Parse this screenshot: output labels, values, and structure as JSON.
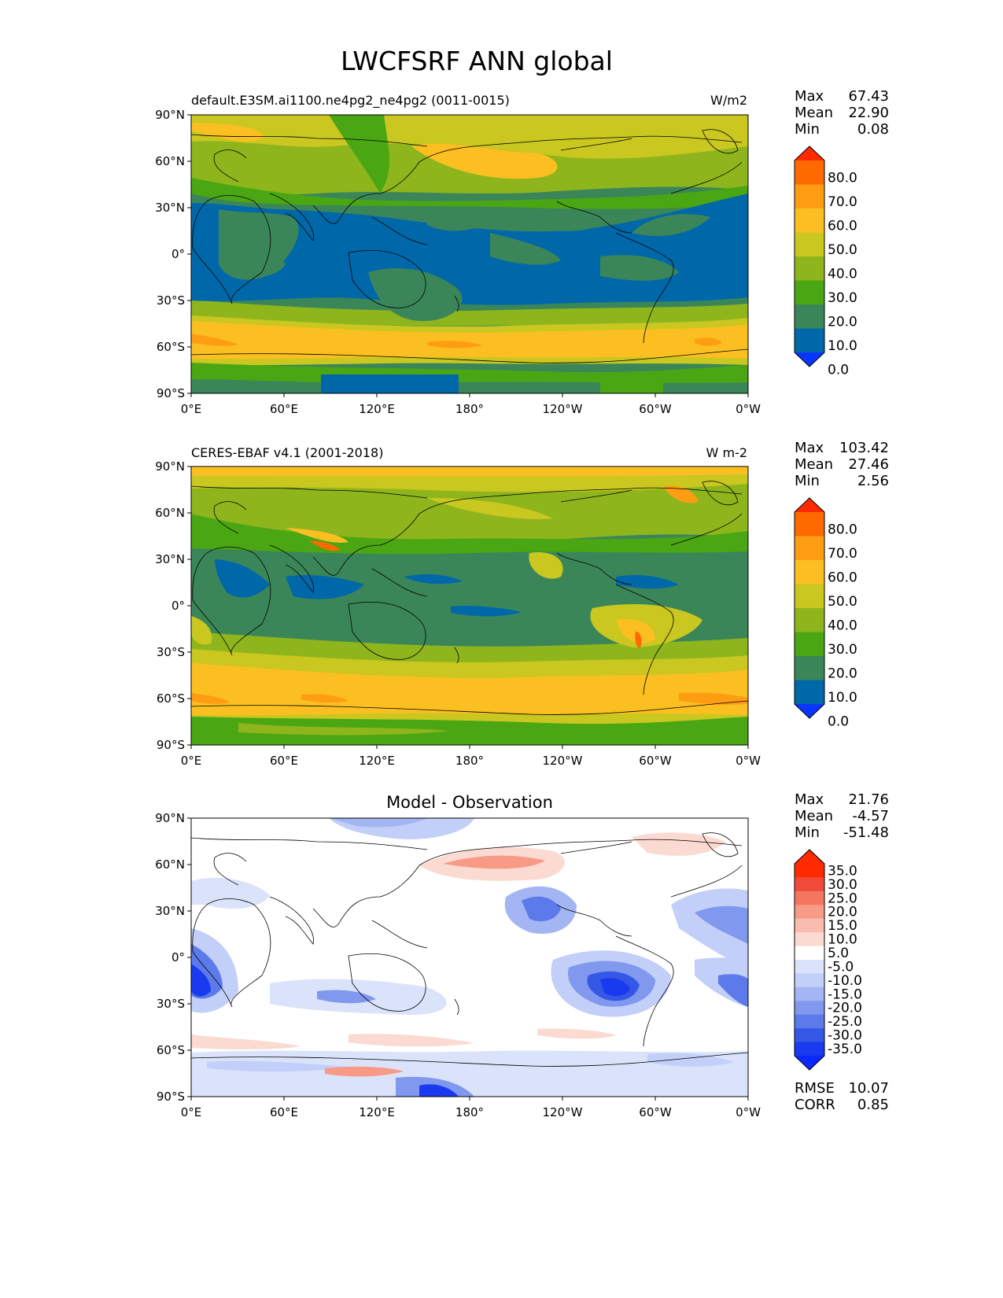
{
  "figure": {
    "title": "LWCFSRF ANN global"
  },
  "axes": {
    "lat_ticks": [
      "90°N",
      "60°N",
      "30°N",
      "0°",
      "30°S",
      "60°S",
      "90°S"
    ],
    "lon_ticks": [
      "0°E",
      "60°E",
      "120°E",
      "180°",
      "120°W",
      "60°W",
      "0°W"
    ]
  },
  "panels": [
    {
      "id": "model",
      "left_title": "default.E3SM.ai1100.ne4pg2_ne4pg2 (0011-0015)",
      "center_title": "",
      "units": "W/m2",
      "stats": [
        {
          "label": "Max",
          "value": "67.43"
        },
        {
          "label": "Mean",
          "value": "22.90"
        },
        {
          "label": "Min",
          "value": "0.08"
        }
      ],
      "colorbar": {
        "labels": [
          "80.0",
          "70.0",
          "60.0",
          "50.0",
          "40.0",
          "30.0",
          "20.0",
          "10.0",
          "0.0"
        ],
        "colors": [
          "#ff2a00",
          "#ff6a00",
          "#ff9d12",
          "#fbbf22",
          "#c9c720",
          "#8fb51d",
          "#4aa613",
          "#3b8659",
          "#0068a9",
          "#0a35ff"
        ]
      }
    },
    {
      "id": "obs",
      "left_title": "CERES-EBAF v4.1 (2001-2018)",
      "center_title": "",
      "units": "W m-2",
      "stats": [
        {
          "label": "Max",
          "value": "103.42"
        },
        {
          "label": "Mean",
          "value": "27.46"
        },
        {
          "label": "Min",
          "value": "2.56"
        }
      ],
      "colorbar": {
        "labels": [
          "80.0",
          "70.0",
          "60.0",
          "50.0",
          "40.0",
          "30.0",
          "20.0",
          "10.0",
          "0.0"
        ],
        "colors": [
          "#ff2a00",
          "#ff6a00",
          "#ff9d12",
          "#fbbf22",
          "#c9c720",
          "#8fb51d",
          "#4aa613",
          "#3b8659",
          "#0068a9",
          "#0a35ff"
        ]
      }
    },
    {
      "id": "diff",
      "left_title": "",
      "center_title": "Model - Observation",
      "units": "",
      "stats": [
        {
          "label": "Max",
          "value": "21.76"
        },
        {
          "label": "Mean",
          "value": "-4.57"
        },
        {
          "label": "Min",
          "value": "-51.48"
        }
      ],
      "metrics": [
        {
          "label": "RMSE",
          "value": "10.07"
        },
        {
          "label": "CORR",
          "value": "0.85"
        }
      ],
      "colorbar": {
        "labels": [
          "35.0",
          "30.0",
          "25.0",
          "20.0",
          "15.0",
          "10.0",
          "5.0",
          "-5.0",
          "-10.0",
          "-15.0",
          "-20.0",
          "-25.0",
          "-30.0",
          "-35.0"
        ],
        "colors": [
          "#ff2a00",
          "#ff2a00",
          "#f04a3a",
          "#f5765e",
          "#f79a86",
          "#f9bcaf",
          "#fbdad2",
          "#ffffff",
          "#dbe3fb",
          "#c2cff8",
          "#a3b5f3",
          "#8098ee",
          "#5c7aea",
          "#3457e6",
          "#1a3af0",
          "#0a28ff"
        ]
      }
    }
  ]
}
